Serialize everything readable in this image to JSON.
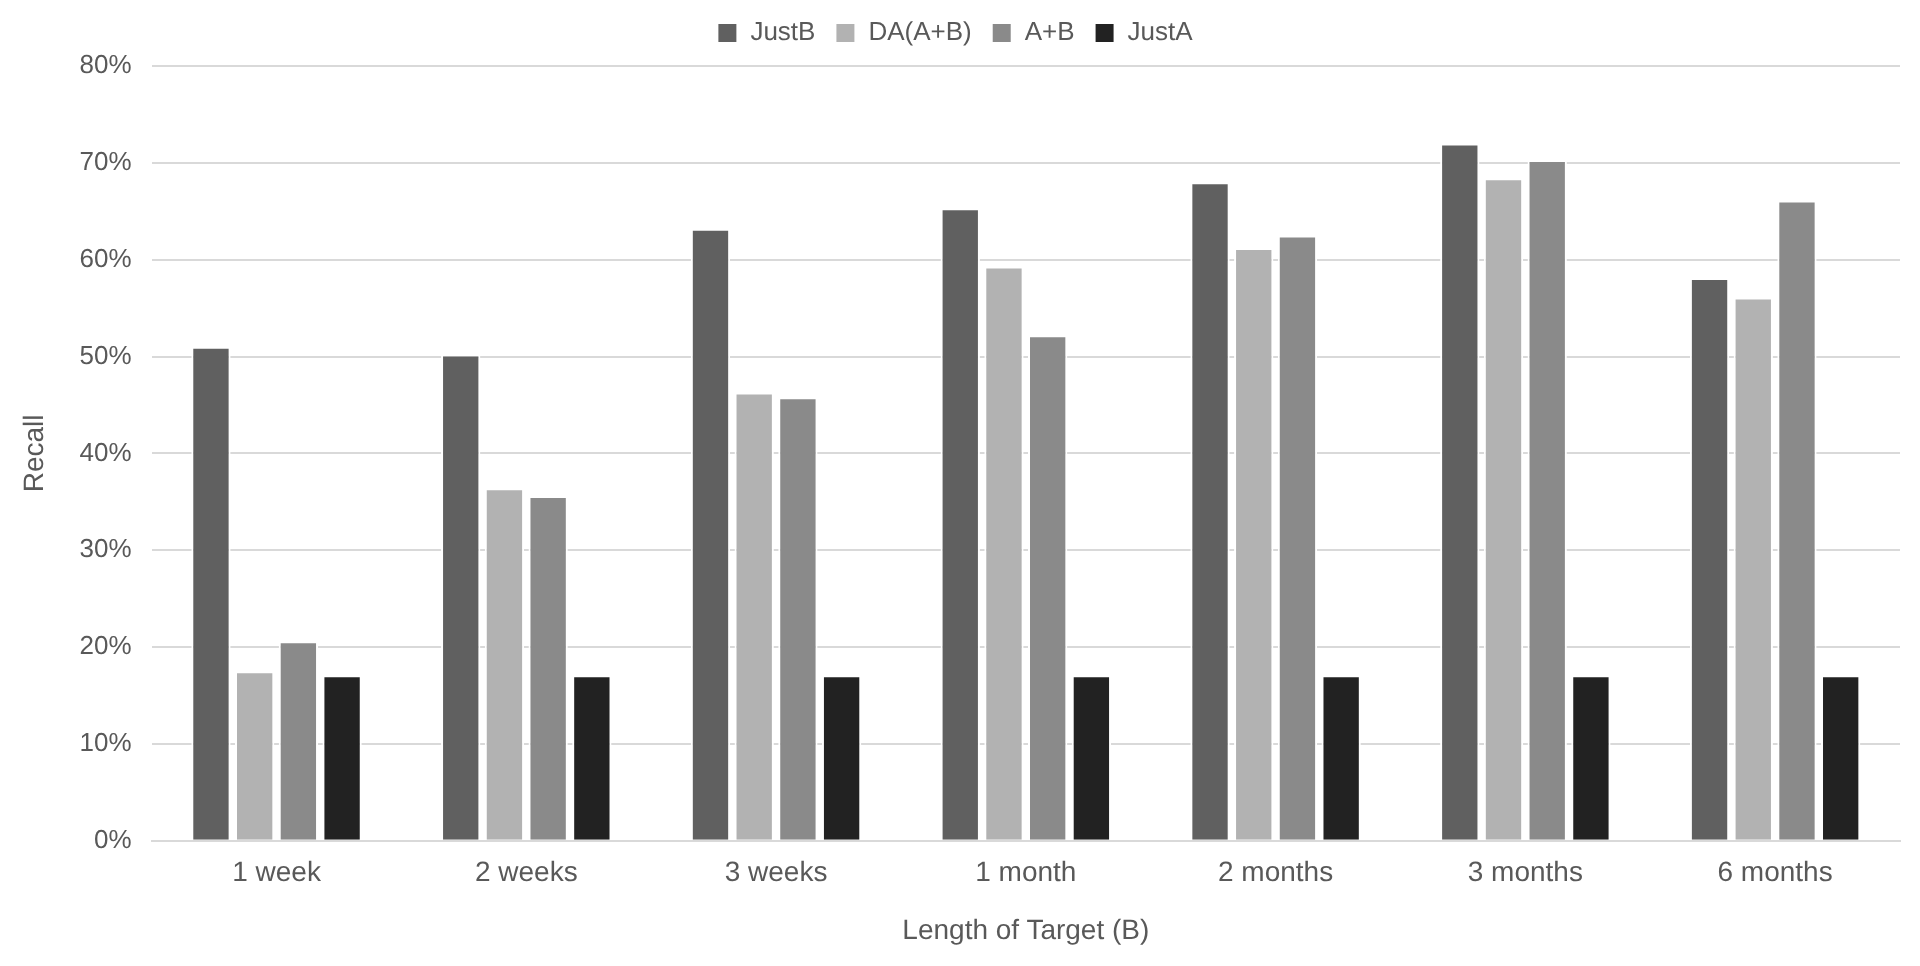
{
  "chart_data": {
    "type": "bar",
    "xlabel": "Length of Target (B)",
    "ylabel": "Recall",
    "categories": [
      "1 week",
      "2 weeks",
      "3 weeks",
      "1 month",
      "2 months",
      "3 months",
      "6 months"
    ],
    "series": [
      {
        "name": "JustB",
        "color": "#606060",
        "values": [
          51.0,
          50.2,
          63.2,
          65.3,
          68.0,
          72.0,
          58.1
        ]
      },
      {
        "name": "DA(A+B)",
        "color": "#b2b2b2",
        "values": [
          17.5,
          36.4,
          46.3,
          59.3,
          61.2,
          68.4,
          56.1
        ]
      },
      {
        "name": "A+B",
        "color": "#8a8a8a",
        "values": [
          20.6,
          35.6,
          45.8,
          52.2,
          62.5,
          70.3,
          66.1
        ]
      },
      {
        "name": "JustA",
        "color": "#222222",
        "values": [
          17.1,
          17.1,
          17.1,
          17.1,
          17.1,
          17.1,
          17.1
        ]
      }
    ],
    "ylim": [
      0,
      80
    ],
    "yticks": [
      {
        "value": 0,
        "label": "0%"
      },
      {
        "value": 10,
        "label": "10%"
      },
      {
        "value": 20,
        "label": "20%"
      },
      {
        "value": 30,
        "label": "30%"
      },
      {
        "value": 40,
        "label": "40%"
      },
      {
        "value": 50,
        "label": "50%"
      },
      {
        "value": 60,
        "label": "60%"
      },
      {
        "value": 70,
        "label": "70%"
      },
      {
        "value": 80,
        "label": "80%"
      }
    ],
    "grid": "y",
    "legend": "top"
  }
}
